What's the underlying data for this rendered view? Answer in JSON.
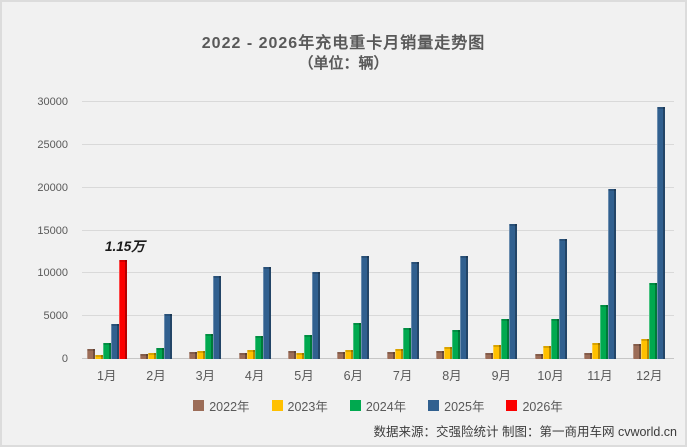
{
  "title": "2022 - 2026年充电重卡月销量走势图",
  "subtitle": "（单位：辆）",
  "footer": "数据来源：交强险统计 制图：第一商用车网 cvworld.cn",
  "colors": {
    "background": "#F1F1F1",
    "frame": "#DCDCDC",
    "grid": "#D9D9D9",
    "axis": "#C6C6C6",
    "text": "#595959",
    "footer_text": "#3C3C3C"
  },
  "chart_data": {
    "type": "bar",
    "title": "2022 - 2026年充电重卡月销量走势图",
    "subtitle": "（单位：辆）",
    "categories": [
      "1月",
      "2月",
      "3月",
      "4月",
      "5月",
      "6月",
      "7月",
      "8月",
      "9月",
      "10月",
      "11月",
      "12月"
    ],
    "series": [
      {
        "name": "2022年",
        "color": "#9C6D58",
        "values": [
          1150,
          600,
          800,
          700,
          900,
          800,
          800,
          900,
          700,
          600,
          700,
          1700
        ]
      },
      {
        "name": "2023年",
        "color": "#FFC000",
        "values": [
          450,
          650,
          950,
          1000,
          750,
          1100,
          1150,
          1400,
          1600,
          1550,
          1900,
          2350
        ]
      },
      {
        "name": "2024年",
        "color": "#00A94F",
        "values": [
          1900,
          1250,
          2950,
          2700,
          2750,
          4200,
          3600,
          3400,
          4700,
          4700,
          6300,
          8900
        ]
      },
      {
        "name": "2025年",
        "color": "#31608F",
        "values": [
          4100,
          5200,
          9700,
          10700,
          10100,
          12000,
          11300,
          12000,
          15800,
          14000,
          19900,
          29400
        ]
      },
      {
        "name": "2026年",
        "color": "#FB0000",
        "values": [
          11500,
          null,
          null,
          null,
          null,
          null,
          null,
          null,
          null,
          null,
          null,
          null
        ]
      }
    ],
    "ylim": [
      0,
      30000
    ],
    "yticks": [
      0,
      5000,
      10000,
      15000,
      20000,
      25000,
      30000
    ],
    "xlabel": "",
    "ylabel": "",
    "grid": true,
    "legend_position": "bottom",
    "annotations": [
      {
        "text": "1.15万",
        "series": "2026年",
        "category": "1月",
        "value": 11500
      }
    ]
  }
}
